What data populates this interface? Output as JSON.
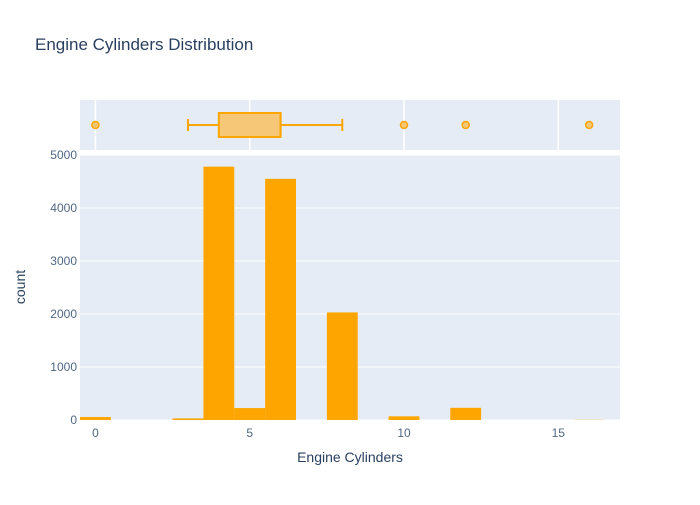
{
  "chart_data": {
    "type": "bar",
    "title": "Engine Cylinders Distribution",
    "xlabel": "Engine Cylinders",
    "ylabel": "count",
    "xlim": [
      -0.5,
      17
    ],
    "ylim": [
      0,
      5000
    ],
    "x_ticks": [
      0,
      5,
      10,
      15
    ],
    "y_ticks": [
      0,
      1000,
      2000,
      3000,
      4000,
      5000
    ],
    "bin_width": 1,
    "bars": [
      {
        "x": 0,
        "value": 56
      },
      {
        "x": 3,
        "value": 30
      },
      {
        "x": 4,
        "value": 4780
      },
      {
        "x": 5,
        "value": 225
      },
      {
        "x": 6,
        "value": 4550
      },
      {
        "x": 8,
        "value": 2030
      },
      {
        "x": 10,
        "value": 70
      },
      {
        "x": 12,
        "value": 230
      },
      {
        "x": 16,
        "value": 3
      }
    ],
    "box": {
      "min": 3,
      "q1": 4,
      "median": 6,
      "q3": 6,
      "max": 8,
      "outliers": [
        0,
        10,
        12,
        16
      ]
    },
    "grid": true,
    "colors": {
      "bar": "#FFA500",
      "box_fill": "#F6C776",
      "box_line": "#FFA500",
      "plot_bg": "#E5ECF6",
      "grid": "#FFFFFF",
      "text": "#2A3F5F",
      "tick_text": "#506784"
    }
  }
}
